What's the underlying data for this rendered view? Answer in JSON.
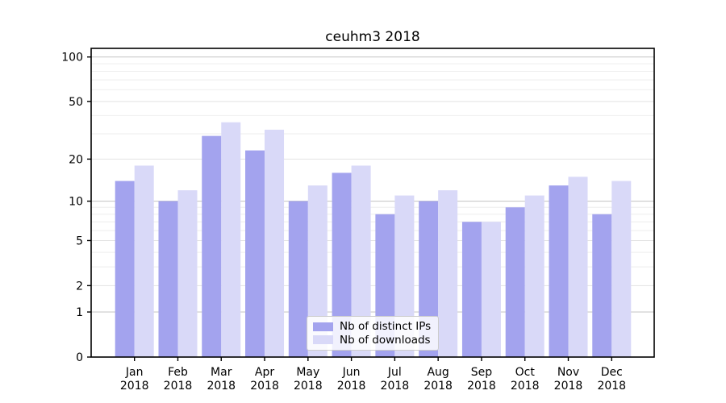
{
  "title": "ceuhm3 2018",
  "background_color": "#ffffff",
  "chart_data": {
    "type": "bar",
    "title": "ceuhm3 2018",
    "categories": [
      "Jan",
      "Feb",
      "Mar",
      "Apr",
      "May",
      "Jun",
      "Jul",
      "Aug",
      "Sep",
      "Oct",
      "Nov",
      "Dec"
    ],
    "category_year": "2018",
    "series": [
      {
        "name": "Nb of distinct IPs",
        "color": "#a3a3ee",
        "values": [
          14,
          10,
          29,
          23,
          10,
          16,
          8,
          10,
          7,
          9,
          13,
          8
        ]
      },
      {
        "name": "Nb of downloads",
        "color": "#d9d9f8",
        "values": [
          18,
          12,
          36,
          32,
          13,
          18,
          11,
          12,
          7,
          11,
          15,
          14
        ]
      }
    ],
    "xlabel": "",
    "ylabel": "",
    "y_scale": "log1p",
    "ylim": [
      0,
      114
    ],
    "y_ticks": [
      0,
      1,
      2,
      5,
      10,
      20,
      50,
      100
    ],
    "y_minor_ticks": [
      3,
      4,
      6,
      7,
      8,
      9,
      30,
      40,
      60,
      70,
      80,
      90
    ],
    "grid": {
      "decade_lines": [
        1,
        10,
        100
      ],
      "decade_color": "#c9c9c9",
      "major_color": "#e2e2e2",
      "minor_color": "#eeeeee"
    },
    "legend_position": "lower center",
    "axis_color": "#000000"
  }
}
